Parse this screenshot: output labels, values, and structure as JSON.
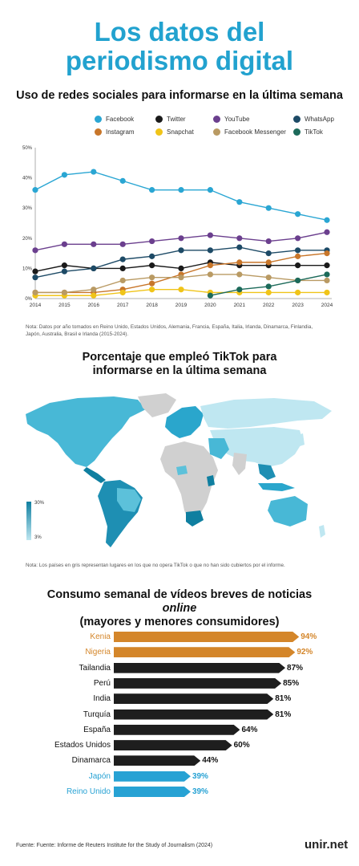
{
  "header": {
    "title_line1": "Los datos del",
    "title_line2": "periodismo digital"
  },
  "colors": {
    "title": "#22a2cf",
    "facebook": "#2aa6d3",
    "twitter": "#1a1a1a",
    "youtube": "#6b3f8e",
    "whatsapp": "#1d4a66",
    "instagram": "#c8762a",
    "snapchat": "#f0c419",
    "messenger": "#b99a63",
    "tiktok": "#1c6a5a",
    "bar_top": "#d4862a",
    "bar_mid": "#1e1e1e",
    "bar_low": "#27a2d4",
    "map_high": "#0f7fa0",
    "map_low": "#bfe7f1",
    "map_none": "#d0d0d0"
  },
  "chart_data": [
    {
      "type": "line",
      "title": "Uso de redes sociales para informarse en la última semana",
      "x": [
        2014,
        2015,
        2016,
        2017,
        2018,
        2019,
        2020,
        2021,
        2022,
        2023,
        2024
      ],
      "y_ticks": [
        "0%",
        "10%",
        "20%",
        "30%",
        "40%",
        "50%"
      ],
      "ylim": [
        0,
        50
      ],
      "series": [
        {
          "name": "Facebook",
          "values": [
            36,
            41,
            42,
            39,
            36,
            36,
            36,
            32,
            30,
            28,
            26
          ]
        },
        {
          "name": "Twitter",
          "values": [
            9,
            11,
            10,
            10,
            11,
            10,
            12,
            11,
            11,
            11,
            11
          ]
        },
        {
          "name": "YouTube",
          "values": [
            16,
            18,
            18,
            18,
            19,
            20,
            21,
            20,
            19,
            20,
            22
          ]
        },
        {
          "name": "WhatsApp",
          "values": [
            7,
            9,
            10,
            13,
            14,
            16,
            16,
            17,
            15,
            16,
            16
          ]
        },
        {
          "name": "Instagram",
          "values": [
            2,
            2,
            2,
            3,
            5,
            8,
            11,
            12,
            12,
            14,
            15
          ]
        },
        {
          "name": "Snapchat",
          "values": [
            1,
            1,
            1,
            2,
            3,
            3,
            2,
            2,
            2,
            2,
            2
          ]
        },
        {
          "name": "Facebook Messenger",
          "values": [
            2,
            2,
            3,
            6,
            7,
            7,
            8,
            8,
            7,
            6,
            6
          ]
        },
        {
          "name": "TikTok",
          "values": [
            null,
            null,
            null,
            null,
            null,
            null,
            1,
            3,
            4,
            6,
            8
          ]
        }
      ]
    },
    {
      "type": "bar",
      "title": "Consumo semanal de vídeos breves de noticias online (mayores y menores consumidores)",
      "categories": [
        "Kenia",
        "Nigeria",
        "Tailandia",
        "Perú",
        "India",
        "Turquía",
        "España",
        "Estados Unidos",
        "Dinamarca",
        "Japón",
        "Reino Unido"
      ],
      "values": [
        94,
        92,
        87,
        85,
        81,
        81,
        64,
        60,
        44,
        39,
        39
      ],
      "value_labels": [
        "94%",
        "92%",
        "87%",
        "85%",
        "81%",
        "81%",
        "64%",
        "60%",
        "44%",
        "39%",
        "39%"
      ],
      "groups": [
        "top",
        "top",
        "mid",
        "mid",
        "mid",
        "mid",
        "mid",
        "mid",
        "mid",
        "low",
        "low"
      ],
      "xlim": [
        0,
        100
      ]
    }
  ],
  "line_section": {
    "note": "Nota: Datos por año tomados en Reino Unido, Estados Unidos, Alemania, Francia, España, Italia, Irlanda, Dinamarca, Finlandia, Japón, Australia, Brasil e Irlanda (2015-2024)."
  },
  "map_section": {
    "title_line1": "Porcentaje que empleó TikTok para",
    "title_line2": "informarse en la última semana",
    "scale_max": "30%",
    "scale_min": "3%",
    "note": "Nota: Los países en gris representan lugares en los que no opera TikTok o que no han sido cubiertos por el informe."
  },
  "bar_section": {
    "title_line1_a": "Consumo semanal de vídeos breves de noticias ",
    "title_line1_b": "online",
    "title_line2": "(mayores y menores consumidores)"
  },
  "footer": {
    "source": "Fuente: Fuente: Informe de Reuters Institute for the Study of Journalism (2024)",
    "brand": "unir.net"
  }
}
